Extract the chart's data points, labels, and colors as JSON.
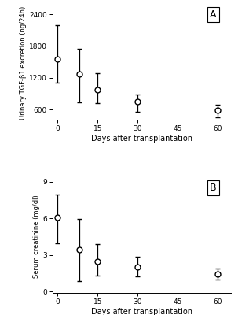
{
  "panel_A": {
    "x": [
      0,
      8,
      15,
      30,
      60
    ],
    "y": [
      1550,
      1270,
      970,
      750,
      580
    ],
    "yerr_lower": [
      450,
      530,
      250,
      200,
      130
    ],
    "yerr_upper": [
      650,
      480,
      310,
      130,
      110
    ],
    "ylabel": "Urinary TGF-β1 excretion (ng/24h)",
    "xlabel": "Days after transplantation",
    "ylim": [
      400,
      2550
    ],
    "yticks": [
      600,
      1200,
      1800,
      2400
    ],
    "xticks": [
      0,
      15,
      30,
      45,
      60
    ],
    "label": "A"
  },
  "panel_B": {
    "x": [
      0,
      8,
      15,
      30,
      60
    ],
    "y": [
      6.05,
      3.45,
      2.5,
      2.0,
      1.45
    ],
    "yerr_lower": [
      2.1,
      2.6,
      1.2,
      0.75,
      0.45
    ],
    "yerr_upper": [
      1.9,
      2.5,
      1.4,
      0.85,
      0.45
    ],
    "ylabel": "Serum creatinine (mg/dl)",
    "xlabel": "Days after transplantation",
    "ylim": [
      -0.1,
      9.2
    ],
    "yticks": [
      0,
      3,
      6,
      9
    ],
    "xticks": [
      0,
      15,
      30,
      45,
      60
    ],
    "label": "B"
  },
  "line_color": "#000000",
  "marker_color": "#ffffff",
  "marker_edge_color": "#000000",
  "marker_size": 5,
  "line_width": 1.0,
  "capsize": 2.5,
  "elinewidth": 0.9,
  "background_color": "#ffffff"
}
